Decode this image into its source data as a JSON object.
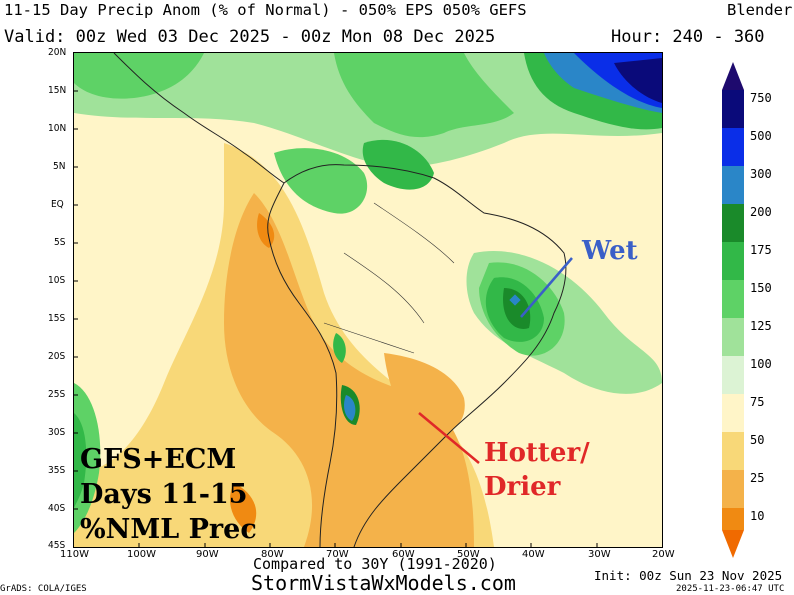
{
  "header": {
    "title": "11-15 Day Precip Anom (% of Normal) - 050% EPS 050% GEFS",
    "blender": "Blender",
    "valid": "Valid: 00z Wed 03 Dec 2025 - 00z Mon 08 Dec 2025",
    "hour": "Hour: 240 - 360"
  },
  "axes": {
    "lat_labels": [
      "20N",
      "15N",
      "10N",
      "5N",
      "EQ",
      "5S",
      "10S",
      "15S",
      "20S",
      "25S",
      "30S",
      "35S",
      "40S",
      "45S"
    ],
    "lon_labels": [
      "110W",
      "100W",
      "90W",
      "80W",
      "70W",
      "60W",
      "50W",
      "40W",
      "30W",
      "20W"
    ]
  },
  "colorbar": {
    "labels": [
      "750",
      "500",
      "300",
      "200",
      "175",
      "150",
      "125",
      "100",
      "75",
      "50",
      "25",
      "10"
    ],
    "colors": [
      "#0a0a7a",
      "#0a2ee8",
      "#2a86c8",
      "#1a8a2a",
      "#32b848",
      "#5ed266",
      "#a0e29a",
      "#dcf3d4",
      "#fff5c8",
      "#f8d878",
      "#f4b24a",
      "#f08a12"
    ],
    "top_color": "#1e0a6e",
    "bottom_color": "#f06a00"
  },
  "annotations": {
    "wet": "Wet",
    "hotter": "Hotter/",
    "drier": "Drier",
    "overlay_line1": "GFS+ECM",
    "overlay_line2": "Days 11-15",
    "overlay_line3": "%NML Prec",
    "wet_color": "#3a5fc8",
    "dry_color": "#e02828"
  },
  "footer": {
    "compared": "Compared to 30Y (1991-2020)",
    "site": "StormVistaWxModels.com",
    "init": "Init: 00z Sun 23 Nov 2025",
    "timestamp": "2025-11-23-06:47 UTC",
    "grads": "GrADS: COLA/IGES"
  }
}
